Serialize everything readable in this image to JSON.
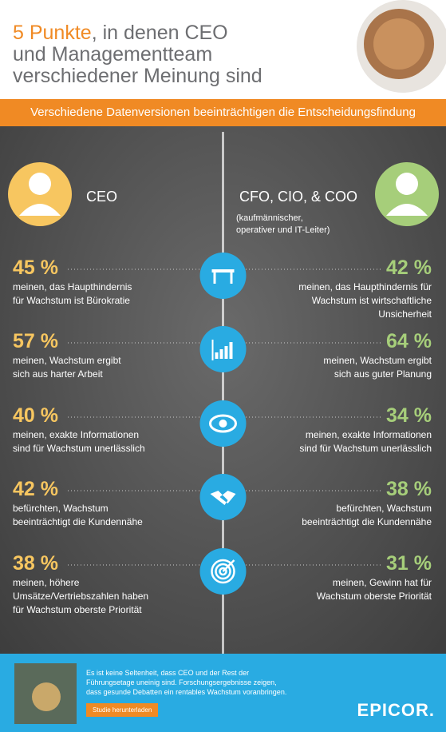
{
  "header": {
    "title": {
      "highlight": "5 Punkte",
      "line1_rest": ", in denen CEO",
      "line2": "und Managementteam",
      "line3": "verschiedener Meinung sind"
    }
  },
  "banner": "Verschiedene Datenversionen beeinträchtigen die Entscheidungsfindung",
  "left": {
    "label": "CEO"
  },
  "right": {
    "label": "CFO, CIO, & COO",
    "note_lines": [
      "(kaufmännischer,",
      "operativer und IT-Leiter)"
    ]
  },
  "rows": [
    {
      "left": {
        "percent": "45 %",
        "lines": [
          "meinen, das Haupthindernis",
          "für Wachstum ist Bürokratie"
        ]
      },
      "right": {
        "percent": "42 %",
        "lines": [
          "meinen, das Haupthindernis für",
          "Wachstum ist wirtschaftliche",
          "Unsicherheit"
        ]
      }
    },
    {
      "left": {
        "percent": "57 %",
        "lines": [
          "meinen, Wachstum ergibt",
          "sich aus harter Arbeit"
        ]
      },
      "right": {
        "percent": "64 %",
        "lines": [
          "meinen, Wachstum ergibt",
          "sich aus guter Planung"
        ]
      }
    },
    {
      "left": {
        "percent": "40 %",
        "lines": [
          "meinen, exakte Informationen",
          "sind für Wachstum unerlässlich"
        ]
      },
      "right": {
        "percent": "34 %",
        "lines": [
          "meinen, exakte Informationen",
          "sind für Wachstum unerlässlich"
        ]
      }
    },
    {
      "left": {
        "percent": "42 %",
        "lines": [
          "befürchten, Wachstum",
          "beeinträchtigt die Kundennähe"
        ]
      },
      "right": {
        "percent": "38 %",
        "lines": [
          "befürchten, Wachstum",
          "beeinträchtigt die Kundennähe"
        ]
      }
    },
    {
      "left": {
        "percent": "38 %",
        "lines": [
          "meinen, höhere",
          "Umsätze/Vertriebszahlen haben",
          "für Wachstum oberste Priorität"
        ]
      },
      "right": {
        "percent": "31 %",
        "lines": [
          "meinen, Gewinn hat für",
          "Wachstum oberste Priorität"
        ]
      }
    }
  ],
  "footer": {
    "text_lines": [
      "Es ist keine Seltenheit, dass CEO und der Rest der",
      "Führungsetage uneinig sind. Forschungsergebnisse zeigen,",
      "dass gesunde Debatten ein rentables Wachstum voranbringen."
    ],
    "button": "Studie herunterladen",
    "logo": "EPICOR."
  }
}
